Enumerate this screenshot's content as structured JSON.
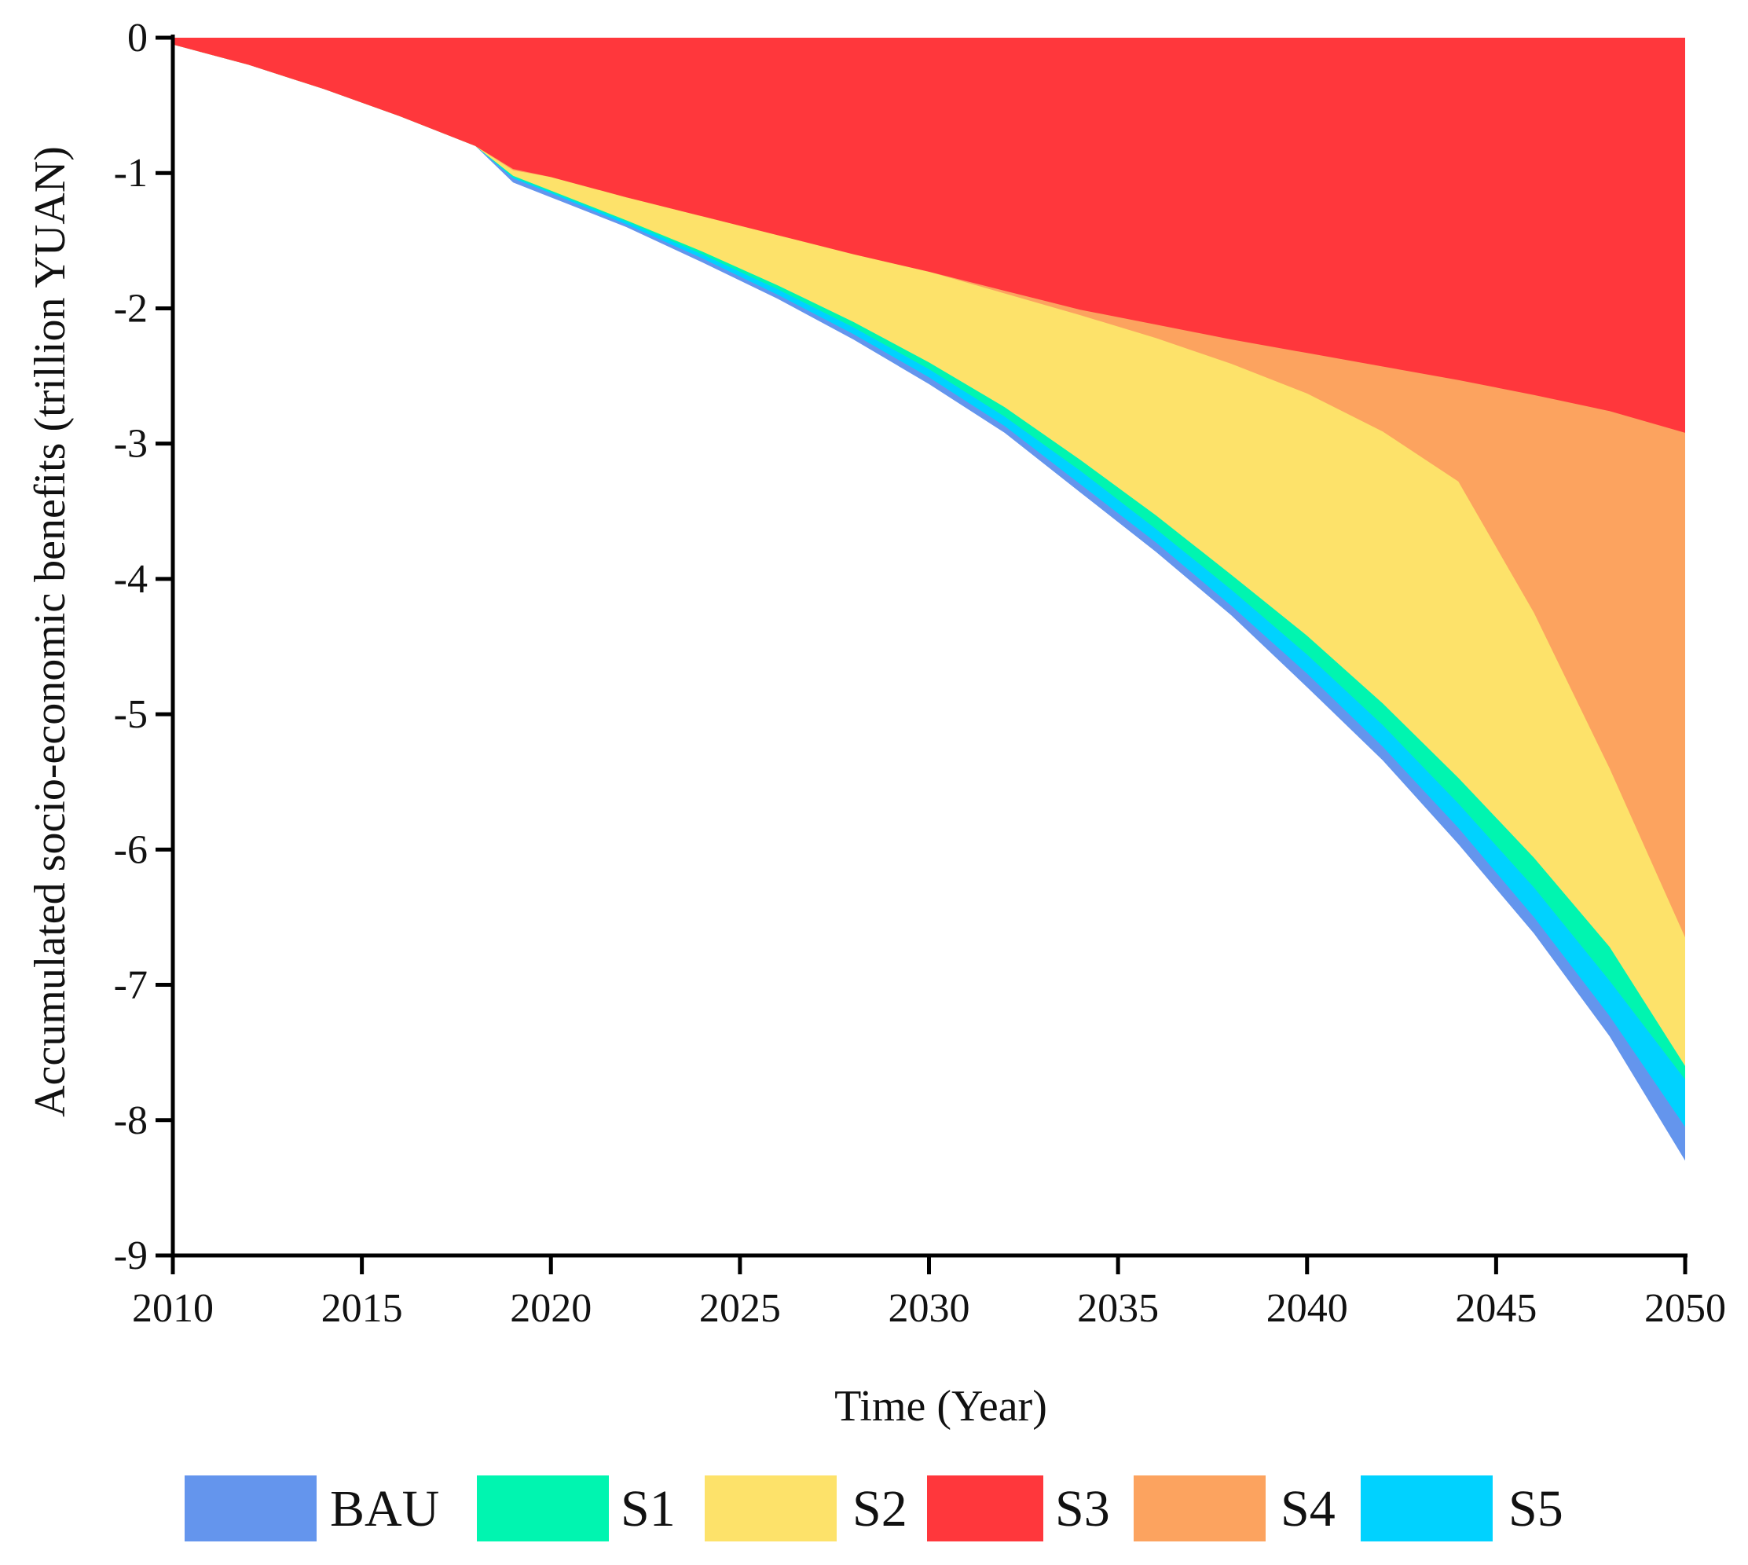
{
  "chart_data": {
    "type": "area",
    "title": "",
    "xlabel": "Time (Year)",
    "ylabel": "Accumulated socio-economic benefits (trillion YUAN)",
    "xlim": [
      2010,
      2050
    ],
    "ylim": [
      -9,
      0
    ],
    "xticks": [
      2010,
      2015,
      2020,
      2025,
      2030,
      2035,
      2040,
      2045,
      2050
    ],
    "yticks": [
      0,
      -1,
      -2,
      -3,
      -4,
      -5,
      -6,
      -7,
      -8,
      -9
    ],
    "grid": false,
    "legend_position": "bottom",
    "x": [
      2010,
      2012,
      2014,
      2016,
      2018,
      2019,
      2020,
      2022,
      2024,
      2026,
      2028,
      2030,
      2032,
      2034,
      2036,
      2038,
      2040,
      2042,
      2044,
      2046,
      2048,
      2050
    ],
    "series": [
      {
        "name": "BAU",
        "color": "#6495ED",
        "values": [
          -0.05,
          -0.2,
          -0.38,
          -0.58,
          -0.8,
          -1.07,
          -1.18,
          -1.4,
          -1.66,
          -1.93,
          -2.23,
          -2.56,
          -2.92,
          -3.36,
          -3.8,
          -4.27,
          -4.8,
          -5.34,
          -5.96,
          -6.62,
          -7.38,
          -8.3
        ]
      },
      {
        "name": "S5",
        "color": "#00D2FF",
        "values": [
          -0.05,
          -0.2,
          -0.38,
          -0.58,
          -0.8,
          -1.04,
          -1.15,
          -1.38,
          -1.63,
          -1.9,
          -2.19,
          -2.51,
          -2.87,
          -3.3,
          -3.73,
          -4.2,
          -4.7,
          -5.24,
          -5.84,
          -6.5,
          -7.23,
          -8.05
        ]
      },
      {
        "name": "S1",
        "color": "#00F5B0",
        "values": [
          -0.05,
          -0.2,
          -0.38,
          -0.58,
          -0.8,
          -1.03,
          -1.14,
          -1.36,
          -1.6,
          -1.86,
          -2.14,
          -2.45,
          -2.8,
          -3.2,
          -3.63,
          -4.08,
          -4.56,
          -5.08,
          -5.66,
          -6.28,
          -6.97,
          -7.7
        ]
      },
      {
        "name": "S2",
        "color": "#FDE26A",
        "values": [
          -0.05,
          -0.2,
          -0.38,
          -0.58,
          -0.8,
          -1.02,
          -1.13,
          -1.35,
          -1.58,
          -1.83,
          -2.1,
          -2.4,
          -2.73,
          -3.12,
          -3.53,
          -3.97,
          -4.42,
          -4.92,
          -5.47,
          -6.06,
          -6.72,
          -7.6
        ]
      },
      {
        "name": "S4",
        "color": "#FCA35F",
        "values": [
          -0.05,
          -0.2,
          -0.38,
          -0.58,
          -0.8,
          -0.98,
          -1.03,
          -1.18,
          -1.32,
          -1.46,
          -1.6,
          -1.73,
          -1.89,
          -2.05,
          -2.22,
          -2.41,
          -2.63,
          -2.91,
          -3.28,
          -4.25,
          -5.4,
          -6.65
        ]
      },
      {
        "name": "S3",
        "color": "#FF373C",
        "values": [
          -0.05,
          -0.2,
          -0.38,
          -0.58,
          -0.8,
          -0.97,
          -1.03,
          -1.18,
          -1.32,
          -1.46,
          -1.6,
          -1.73,
          -1.87,
          -2.01,
          -2.12,
          -2.23,
          -2.33,
          -2.43,
          -2.53,
          -2.64,
          -2.76,
          -2.92
        ]
      }
    ],
    "legend_order": [
      "BAU",
      "S1",
      "S2",
      "S3",
      "S4",
      "S5"
    ]
  }
}
